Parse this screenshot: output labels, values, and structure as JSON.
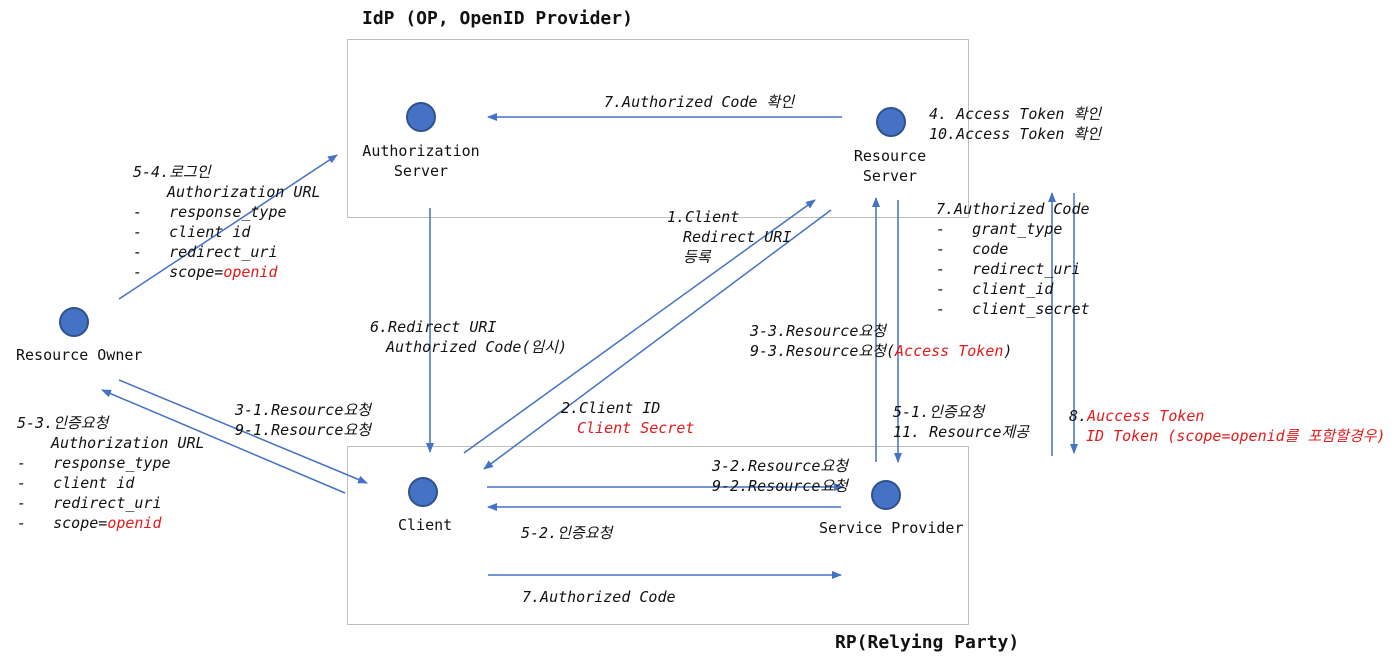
{
  "titles": {
    "idp": "IdP (OP, OpenID Provider)",
    "rp": "RP(Relying Party)"
  },
  "nodes": {
    "auth_server": [
      "Authorization",
      "Server"
    ],
    "resource_server": [
      "Resource",
      "Server"
    ],
    "resource_owner": "Resource Owner",
    "client": "Client",
    "service_provider": "Service Provider"
  },
  "steps": {
    "s7_code_check": "7.Authorized Code 확인",
    "s4_token_check": "4. Access Token 확인",
    "s10_token_check": "10.Access Token 확인",
    "s5_4": {
      "title": "5-4.로그인",
      "url": "Authorization URL",
      "items": [
        "-   response_type",
        "-   client id",
        "-   redirect_uri",
        "-   scope="
      ],
      "scope_value": "openid"
    },
    "s1_client": [
      "1.Client",
      "Redirect URI",
      "등록"
    ],
    "s7_code_params": {
      "title": "7.Authorized Code",
      "items": [
        "-   grant_type",
        "-   code",
        "-   redirect_uri",
        "-   client_id",
        "-   client_secret"
      ]
    },
    "s6": [
      "6.Redirect URI",
      "Authorized Code(임시)"
    ],
    "s3_3": "3-3.Resource요청",
    "s9_3": {
      "prefix": "9-3.Resource요청(",
      "token": "Access Token",
      "suffix": ")"
    },
    "s3_1": "3-1.Resource요청",
    "s9_1": "9-1.Resource요청",
    "s2": {
      "id": "2.Client ID",
      "secret": "Client Secret"
    },
    "s5_1": "5-1.인증요청",
    "s11": "11. Resource제공",
    "s8": {
      "prefix": "8.",
      "token": "Auccess Token",
      "id_token": "ID Token (scope=openid를 포함할경우)"
    },
    "s5_3": {
      "title": "5-3.인증요청",
      "url": "Authorization URL",
      "items": [
        "-   response_type",
        "-   client id",
        "-   redirect_uri",
        "-   scope="
      ],
      "scope_value": "openid"
    },
    "s3_2": "3-2.Resource요청",
    "s9_2": "9-2.Resource요청",
    "s5_2": "5-2.인증요청",
    "s7_code_bottom": "7.Authorized Code"
  },
  "colors": {
    "node_fill": "#4472c4",
    "arrow": "#4472c4",
    "highlight": "#e31b1b",
    "box_border": "#bfbfbf"
  }
}
